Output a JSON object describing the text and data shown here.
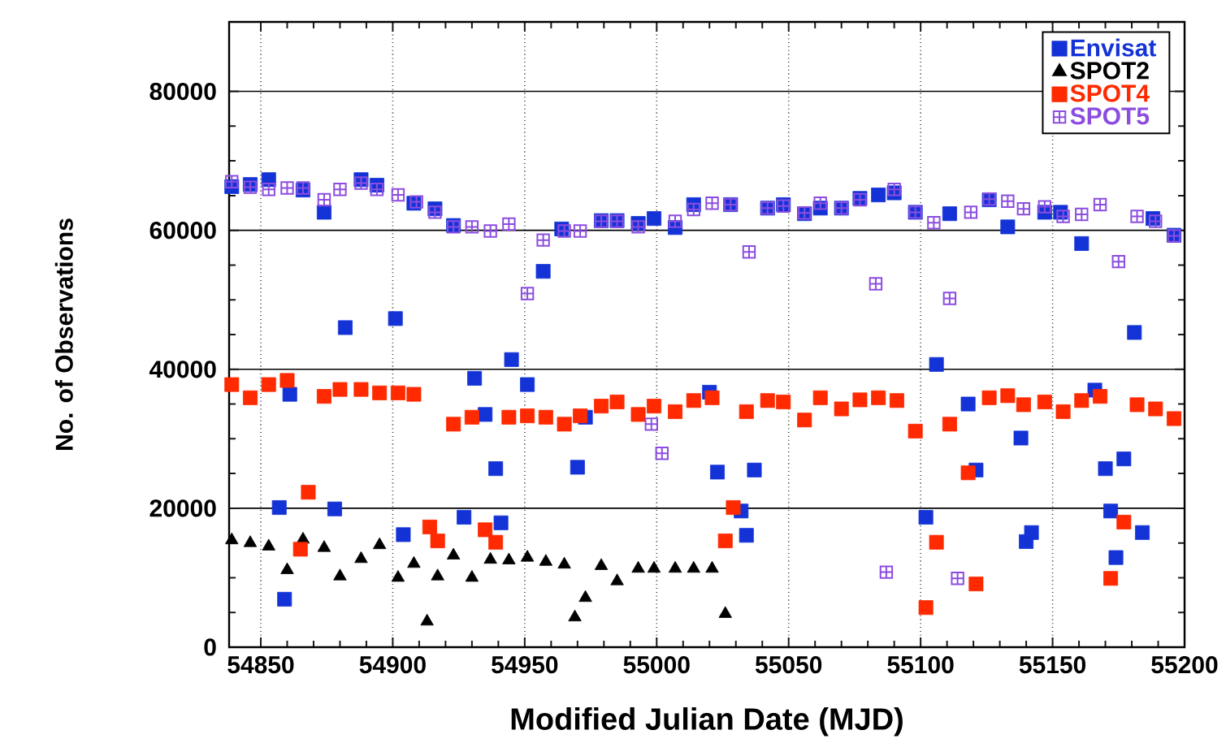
{
  "chart_data": {
    "type": "scatter",
    "xlabel": "Modified Julian Date (MJD)",
    "ylabel": "No. of Observations",
    "xlim": [
      54838,
      55200
    ],
    "xticks": [
      54850,
      54900,
      54950,
      55000,
      55050,
      55100,
      55150,
      55200
    ],
    "ylim": [
      0,
      90000
    ],
    "yticks": [
      0,
      20000,
      40000,
      60000,
      80000
    ],
    "grid": true,
    "legend": "top right",
    "series": [
      {
        "name": "Envisat",
        "color": "#1433d6",
        "marker": "square",
        "x": [
          54839,
          54846,
          54853,
          54857,
          54859,
          54861,
          54866,
          54874,
          54878,
          54882,
          54888,
          54894,
          54901,
          54904,
          54908,
          54916,
          54923,
          54927,
          54931,
          54935,
          54939,
          54941,
          54945,
          54951,
          54957,
          54964,
          54970,
          54973,
          54979,
          54985,
          54993,
          54999,
          55007,
          55014,
          55020,
          55023,
          55028,
          55032,
          55034,
          55037,
          55042,
          55048,
          55056,
          55062,
          55070,
          55077,
          55084,
          55090,
          55098,
          55102,
          55106,
          55111,
          55118,
          55121,
          55126,
          55133,
          55138,
          55140,
          55142,
          55147,
          55153,
          55161,
          55166,
          55170,
          55172,
          55174,
          55177,
          55181,
          55184,
          55188,
          55196
        ],
        "values": [
          66300,
          66600,
          67300,
          20100,
          6900,
          36400,
          65800,
          62600,
          19900,
          46000,
          67300,
          66500,
          47300,
          16200,
          63900,
          63100,
          60700,
          18700,
          38700,
          33500,
          25700,
          17900,
          41400,
          37800,
          54100,
          60200,
          25900,
          33100,
          61400,
          61400,
          61000,
          61700,
          60400,
          63700,
          36700,
          25200,
          63700,
          19600,
          16100,
          25500,
          63200,
          63700,
          62400,
          63200,
          63200,
          64600,
          65100,
          65400,
          62600,
          18700,
          40700,
          62400,
          35000,
          25500,
          64400,
          60500,
          30100,
          15200,
          16500,
          62600,
          62600,
          58100,
          37000,
          25700,
          19600,
          12900,
          27100,
          45300,
          16500,
          61700,
          59300
        ]
      },
      {
        "name": "SPOT2",
        "color": "#000000",
        "marker": "triangle",
        "x": [
          54839,
          54846,
          54853,
          54860,
          54866,
          54874,
          54880,
          54888,
          54895,
          54902,
          54908,
          54913,
          54917,
          54923,
          54930,
          54937,
          54944,
          54951,
          54958,
          54965,
          54969,
          54973,
          54979,
          54985,
          54993,
          54999,
          55007,
          55014,
          55021,
          55026
        ],
        "values": [
          15400,
          15000,
          14500,
          11100,
          15500,
          14300,
          10200,
          12700,
          14700,
          10000,
          12000,
          3700,
          10200,
          13200,
          10000,
          12600,
          12500,
          12900,
          12300,
          11900,
          4300,
          7100,
          11700,
          9500,
          11300,
          11300,
          11300,
          11300,
          11300,
          4800
        ]
      },
      {
        "name": "SPOT4",
        "color": "#ff2a00",
        "marker": "square",
        "x": [
          54839,
          54846,
          54853,
          54860,
          54865,
          54868,
          54874,
          54880,
          54888,
          54895,
          54902,
          54908,
          54914,
          54917,
          54923,
          54930,
          54935,
          54939,
          54944,
          54951,
          54958,
          54965,
          54971,
          54979,
          54985,
          54993,
          54999,
          55007,
          55014,
          55021,
          55026,
          55029,
          55034,
          55042,
          55048,
          55056,
          55062,
          55070,
          55077,
          55084,
          55091,
          55098,
          55102,
          55106,
          55111,
          55118,
          55121,
          55126,
          55133,
          55139,
          55147,
          55154,
          55161,
          55168,
          55172,
          55177,
          55182,
          55189,
          55196
        ],
        "values": [
          37800,
          35900,
          37800,
          38400,
          14100,
          22300,
          36100,
          37100,
          37100,
          36600,
          36600,
          36400,
          17300,
          15300,
          32100,
          33100,
          16900,
          15100,
          33100,
          33300,
          33100,
          32100,
          33300,
          34700,
          35300,
          33500,
          34700,
          33900,
          35500,
          35900,
          15300,
          20100,
          33900,
          35500,
          35300,
          32700,
          35900,
          34300,
          35600,
          35900,
          35500,
          31100,
          5700,
          15100,
          32100,
          25100,
          9100,
          35900,
          36200,
          34900,
          35300,
          33900,
          35500,
          36100,
          9900,
          18000,
          34900,
          34300,
          32900
        ]
      },
      {
        "name": "SPOT5",
        "color": "#8c4de0",
        "marker": "cross",
        "x": [
          54839,
          54846,
          54853,
          54860,
          54866,
          54874,
          54880,
          54888,
          54894,
          54902,
          54909,
          54916,
          54923,
          54930,
          54937,
          54944,
          54951,
          54957,
          54965,
          54971,
          54979,
          54985,
          54993,
          54998,
          55002,
          55007,
          55014,
          55021,
          55028,
          55035,
          55042,
          55048,
          55056,
          55062,
          55070,
          55077,
          55083,
          55087,
          55090,
          55098,
          55105,
          55111,
          55114,
          55119,
          55126,
          55133,
          55139,
          55147,
          55154,
          55161,
          55168,
          55175,
          55182,
          55189,
          55196
        ],
        "values": [
          67000,
          66200,
          65900,
          66100,
          66100,
          64400,
          65900,
          66800,
          65900,
          65100,
          64100,
          62600,
          60500,
          60500,
          59900,
          60900,
          50900,
          58600,
          59900,
          59900,
          61300,
          61300,
          60500,
          32100,
          27900,
          61300,
          63000,
          63900,
          63700,
          56900,
          63200,
          63500,
          62500,
          63900,
          63200,
          64400,
          52300,
          10800,
          65900,
          62600,
          61100,
          50200,
          9900,
          62600,
          64500,
          64200,
          63100,
          63400,
          62000,
          62300,
          63700,
          55500,
          62000,
          61300,
          59200
        ]
      }
    ]
  }
}
